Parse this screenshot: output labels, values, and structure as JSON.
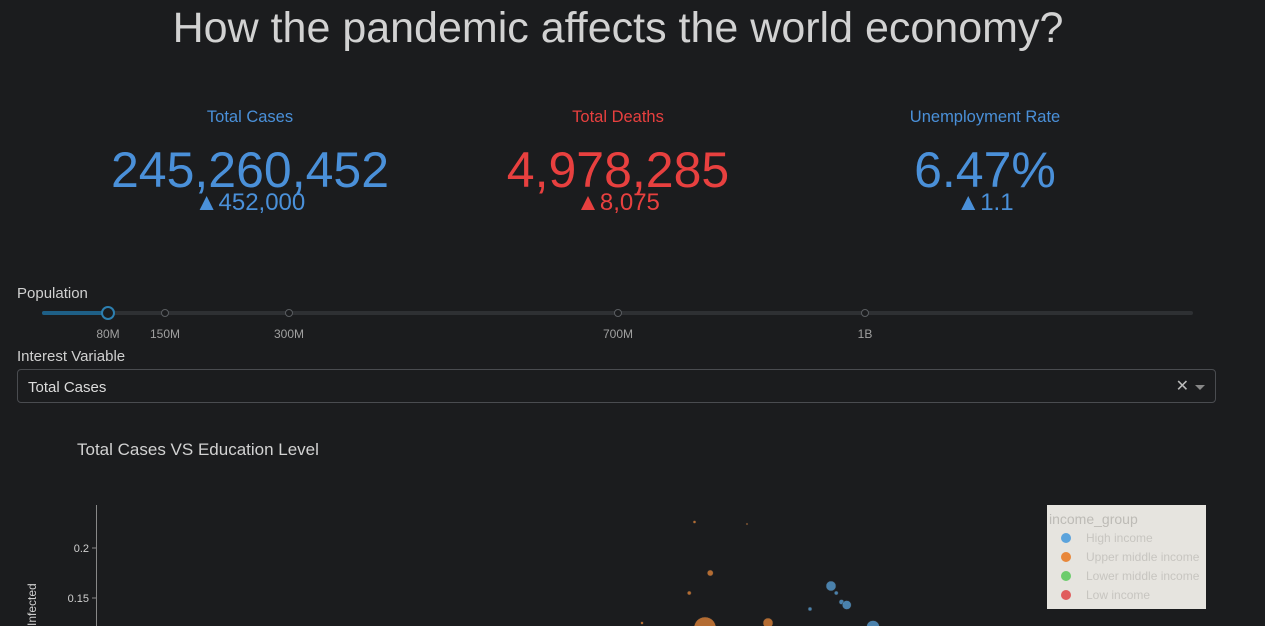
{
  "page_title": "How the pandemic affects the world economy?",
  "kpis": [
    {
      "label": "Total Cases",
      "value": "245,260,452",
      "delta": "452,000",
      "delta_arrow": "▲",
      "color": "#4a90d9"
    },
    {
      "label": "Total Deaths",
      "value": "4,978,285",
      "delta": "8,075",
      "delta_arrow": "▲",
      "color": "#e8403f"
    },
    {
      "label": "Unemployment Rate",
      "value": "6.47%",
      "delta": "1.1",
      "delta_arrow": "▲",
      "color": "#4a90d9"
    }
  ],
  "population_slider": {
    "label": "Population",
    "marks": [
      "80M",
      "150M",
      "300M",
      "700M",
      "1B"
    ],
    "selected": "80M"
  },
  "interest_variable": {
    "label": "Interest Variable",
    "value": "Total Cases",
    "clear_icon": "close-icon",
    "arrow_icon": "chevron-down-icon"
  },
  "chart_data": {
    "type": "scatter",
    "title": "Total Cases VS Education Level",
    "ylabel": "Infected",
    "yticks": [
      "0.2",
      "0.15"
    ],
    "ylim": [
      0.12,
      0.24
    ],
    "legend_title": "income_group",
    "legend_position": "top-right",
    "series": [
      {
        "name": "High income",
        "color": "#5ba3dc",
        "points": [
          {
            "x": 0.7,
            "y": 0.162,
            "size": 10
          },
          {
            "x": 0.705,
            "y": 0.155,
            "size": 4
          },
          {
            "x": 0.71,
            "y": 0.146,
            "size": 5
          },
          {
            "x": 0.715,
            "y": 0.143,
            "size": 9
          },
          {
            "x": 0.68,
            "y": 0.139,
            "size": 4
          },
          {
            "x": 0.74,
            "y": 0.121,
            "size": 13
          }
        ]
      },
      {
        "name": "Upper middle income",
        "color": "#e8873a",
        "points": [
          {
            "x": 0.57,
            "y": 0.226,
            "size": 3
          },
          {
            "x": 0.585,
            "y": 0.175,
            "size": 6
          },
          {
            "x": 0.565,
            "y": 0.155,
            "size": 4
          },
          {
            "x": 0.64,
            "y": 0.125,
            "size": 10
          },
          {
            "x": 0.58,
            "y": 0.12,
            "size": 22
          },
          {
            "x": 0.52,
            "y": 0.125,
            "size": 3
          },
          {
            "x": 0.62,
            "y": 0.224,
            "size": 2
          }
        ]
      },
      {
        "name": "Lower middle income",
        "color": "#6ccc6c",
        "points": []
      },
      {
        "name": "Low income",
        "color": "#e05c5c",
        "points": []
      }
    ]
  }
}
